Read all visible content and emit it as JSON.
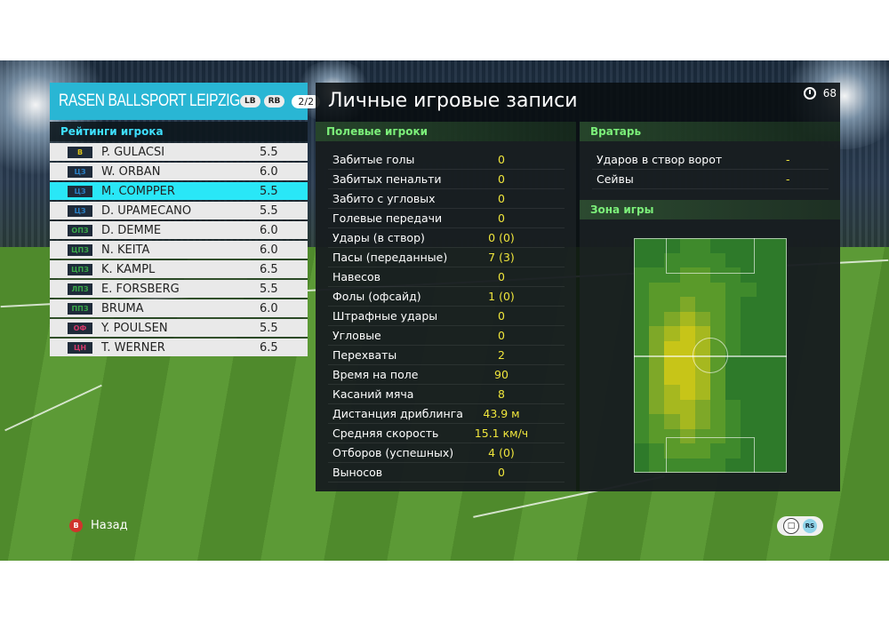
{
  "team": {
    "name": "RASEN BALLSPORT LEIPZIG",
    "btn_lb": "LB",
    "btn_rb": "RB",
    "page": "2/2"
  },
  "ratings": {
    "title": "Рейтинги игрока",
    "players": [
      {
        "pos": "В",
        "pos_color": "#d8c11a",
        "name": "P. GULÁCSI",
        "rating": "5.5",
        "selected": false
      },
      {
        "pos": "ЦЗ",
        "pos_color": "#2a7fc4",
        "name": "W. ORBAN",
        "rating": "6.0",
        "selected": false
      },
      {
        "pos": "ЦЗ",
        "pos_color": "#2a7fc4",
        "name": "M. COMPPER",
        "rating": "5.5",
        "selected": true
      },
      {
        "pos": "ЦЗ",
        "pos_color": "#2a7fc4",
        "name": "D. UPAMECANO",
        "rating": "5.5",
        "selected": false
      },
      {
        "pos": "ОПЗ",
        "pos_color": "#3aa84a",
        "name": "D. DEMME",
        "rating": "6.0",
        "selected": false
      },
      {
        "pos": "ЦПЗ",
        "pos_color": "#3aa84a",
        "name": "N. KEÏTA",
        "rating": "6.0",
        "selected": false
      },
      {
        "pos": "ЦПЗ",
        "pos_color": "#3aa84a",
        "name": "K. KAMPL",
        "rating": "6.5",
        "selected": false
      },
      {
        "pos": "ЛПЗ",
        "pos_color": "#3aa84a",
        "name": "E. FORSBERG",
        "rating": "5.5",
        "selected": false
      },
      {
        "pos": "ППЗ",
        "pos_color": "#3aa84a",
        "name": "BRUMA",
        "rating": "6.0",
        "selected": false
      },
      {
        "pos": "ОФ",
        "pos_color": "#d23a6a",
        "name": "Y. POULSEN",
        "rating": "5.5",
        "selected": false
      },
      {
        "pos": "ЦН",
        "pos_color": "#d23a6a",
        "name": "T. WERNER",
        "rating": "6.5",
        "selected": false
      }
    ]
  },
  "records": {
    "title": "Личные игровые записи",
    "timer": "68",
    "field_title": "Полевые игроки",
    "field_stats": [
      {
        "label": "Забитые голы",
        "value": "0"
      },
      {
        "label": "Забитых пенальти",
        "value": "0"
      },
      {
        "label": "Забито с угловых",
        "value": "0"
      },
      {
        "label": "Голевые передачи",
        "value": "0"
      },
      {
        "label": "Удары (в створ)",
        "value": "0 (0)"
      },
      {
        "label": "Пасы (переданные)",
        "value": "7 (3)"
      },
      {
        "label": "Навесов",
        "value": "0"
      },
      {
        "label": "Фолы (офсайд)",
        "value": "1 (0)"
      },
      {
        "label": "Штрафные удары",
        "value": "0"
      },
      {
        "label": "Угловые",
        "value": "0"
      },
      {
        "label": "Перехваты",
        "value": "2"
      },
      {
        "label": "Время на поле",
        "value": "90"
      },
      {
        "label": "Касаний мяча",
        "value": "8"
      },
      {
        "label": "Дистанция дриблинга",
        "value": "43.9 м"
      },
      {
        "label": "Средняя скорость",
        "value": "15.1 км/ч"
      },
      {
        "label": "Отборов (успешных)",
        "value": "4 (0)"
      },
      {
        "label": "Выносов",
        "value": "0"
      }
    ],
    "gk_title": "Вратарь",
    "gk_stats": [
      {
        "label": "Ударов в створ ворот",
        "value": "-"
      },
      {
        "label": "Сейвы",
        "value": "-"
      }
    ],
    "zone_title": "Зона игры"
  },
  "footer": {
    "back_button": "B",
    "back_label": "Назад",
    "rs_label": "RS"
  }
}
